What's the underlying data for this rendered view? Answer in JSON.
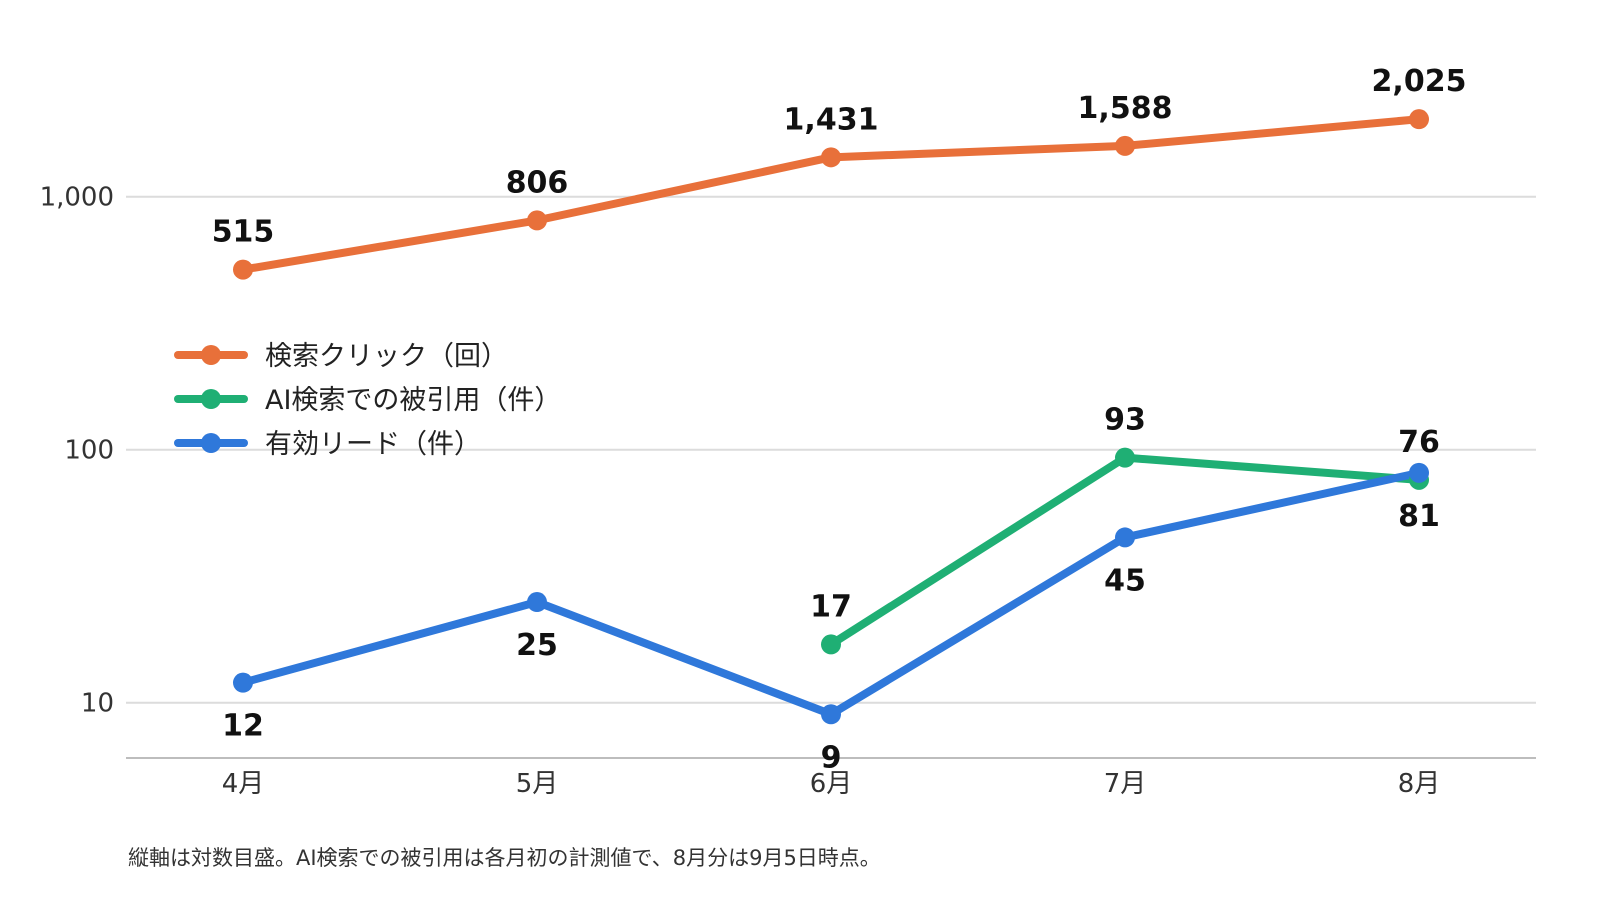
{
  "chart_data": {
    "type": "line",
    "y_scale": "log",
    "ylim": [
      6,
      3000
    ],
    "y_ticks": [
      {
        "value": 10,
        "label": "10"
      },
      {
        "value": 100,
        "label": "100"
      },
      {
        "value": 1000,
        "label": "1,000"
      }
    ],
    "categories": [
      "4月",
      "5月",
      "6月",
      "7月",
      "8月"
    ],
    "grid": true,
    "legend_position": "center-left",
    "series": [
      {
        "name": "検索クリック（回）",
        "color": "#E8703A",
        "values": [
          515,
          806,
          1431,
          1588,
          2025
        ],
        "labels": [
          "515",
          "806",
          "1,431",
          "1,588",
          "2,025"
        ],
        "label_position": [
          "above",
          "above",
          "above",
          "above",
          "above"
        ]
      },
      {
        "name": "AI検索での被引用（件）",
        "color": "#1FAF74",
        "values": [
          null,
          null,
          17,
          93,
          76
        ],
        "labels": [
          null,
          null,
          "17",
          "93",
          "76"
        ],
        "label_position": [
          null,
          null,
          "above",
          "above",
          "above"
        ]
      },
      {
        "name": "有効リード（件）",
        "color": "#2F78DA",
        "values": [
          12,
          25,
          9,
          45,
          81
        ],
        "labels": [
          "12",
          "25",
          "9",
          "45",
          "81"
        ],
        "label_position": [
          "below",
          "below",
          "below",
          "below",
          "below"
        ]
      }
    ],
    "footnote": "縦軸は対数目盛。AI検索での被引用は各月初の計測値で、8月分は9月5日時点。"
  }
}
